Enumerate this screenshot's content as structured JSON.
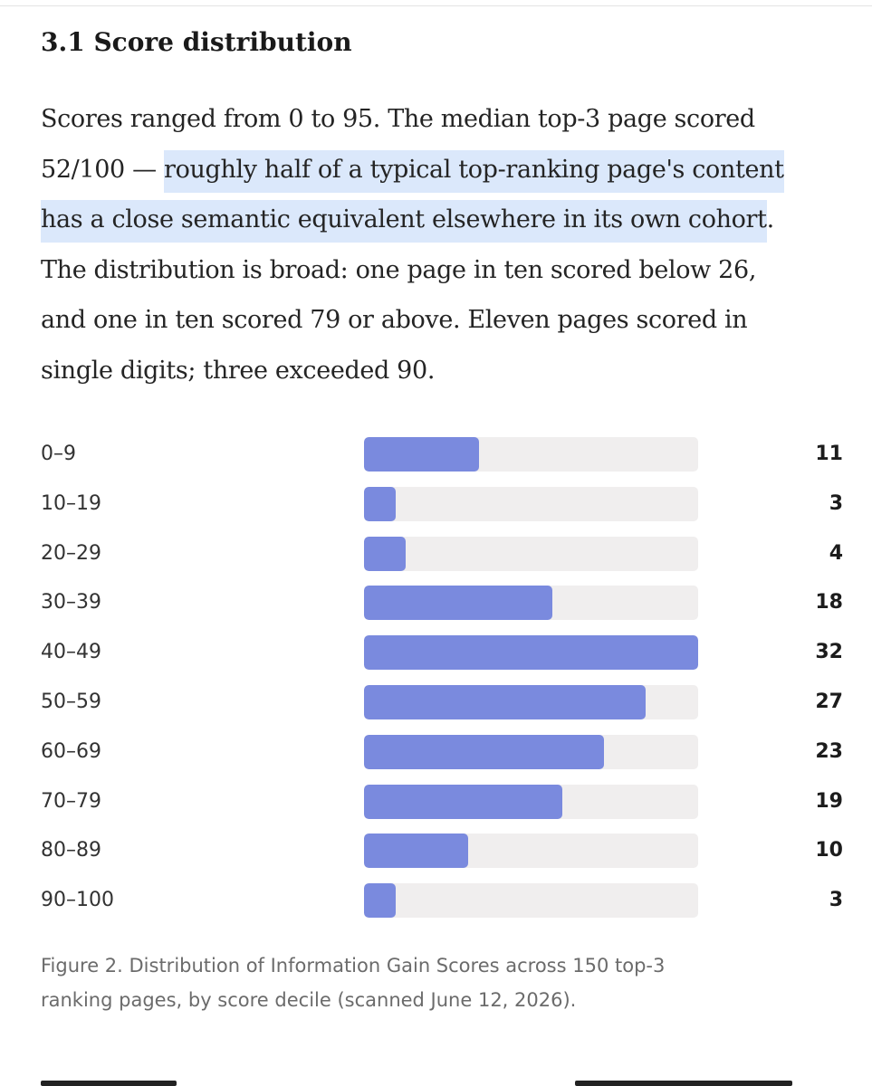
{
  "section": {
    "heading": "3.1 Score distribution"
  },
  "paragraph": {
    "line1": "Scores ranged from 0 to 95. The median top-3 page scored",
    "line2_plain": "52/100 — ",
    "line2_highlight": "roughly half of a typical top-ranking page's content",
    "line3_highlight": "has a close semantic equivalent elsewhere in its own cohort",
    "line3_plain": ".",
    "line4": "The distribution is broad: one page in ten scored below 26,",
    "line5": "and one in ten scored 79 or above. Eleven pages scored in",
    "line6": "single digits; three exceeded 90."
  },
  "chart_data": {
    "type": "bar",
    "orientation": "horizontal",
    "categories": [
      "0–9",
      "10–19",
      "20–29",
      "30–39",
      "40–49",
      "50–59",
      "60–69",
      "70–79",
      "80–89",
      "90–100"
    ],
    "values": [
      11,
      3,
      4,
      18,
      32,
      27,
      23,
      19,
      10,
      3
    ],
    "xlim": [
      0,
      32
    ],
    "grid": false,
    "value_labels": true,
    "colors": {
      "bar": "#7a8ade",
      "track": "#f0eeee"
    }
  },
  "caption": {
    "line1": "Figure 2. Distribution of Information Gain Scores across 150 top-3",
    "line2": "ranking pages, by score decile (scanned June 12, 2026)."
  },
  "colors": {
    "highlight": "#dbe8fb",
    "text": "#242424",
    "caption_text": "#6b6b6b"
  }
}
